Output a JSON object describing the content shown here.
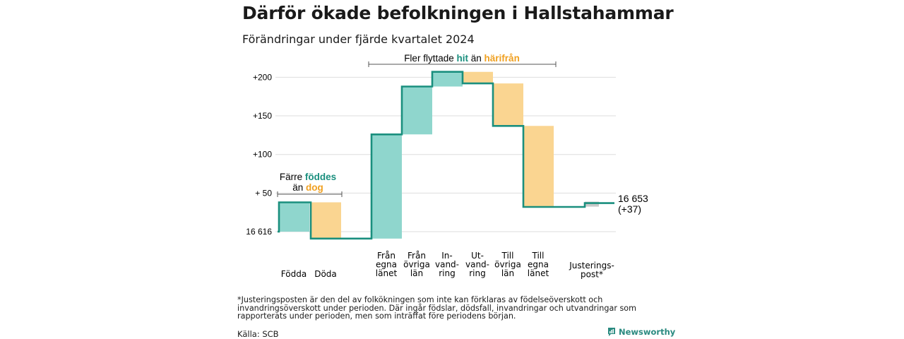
{
  "header": {
    "title": "Därför ökade befolkningen i Hallstahammar",
    "subtitle": "Förändringar under fjärde kvartalet 2024"
  },
  "annotations": {
    "migration_prefix": "Fler flyttade",
    "migration_hit": "hit",
    "migration_mid": "än",
    "migration_harifran": "härifrån",
    "births_line1_prefix": "Färre",
    "births_line1_word": "föddes",
    "births_line2_prefix": "än",
    "births_line2_word": "dog"
  },
  "end_label": {
    "value": "16 653",
    "change": "(+37)"
  },
  "colors": {
    "increase": "#8fd6cd",
    "decrease": "#fad591",
    "adjustment": "#c8c8c8",
    "line": "#1a8f7e",
    "teal_text": "#1a8f7e",
    "orange_text": "#f0a020",
    "grid": "#dddddd"
  },
  "chart_data": {
    "type": "waterfall",
    "title": "Därför ökade befolkningen i Hallstahammar",
    "subtitle": "Förändringar under fjärde kvartalet 2024",
    "baseline": 16616,
    "baseline_label": "16 616",
    "y_ticks": [
      "+200",
      "+150",
      "+100",
      "+ 50"
    ],
    "ylim": [
      -10,
      210
    ],
    "grid": true,
    "categories": [
      {
        "lines": [
          "Födda"
        ],
        "delta": 38,
        "kind": "increase"
      },
      {
        "lines": [
          "Döda"
        ],
        "delta": -47,
        "kind": "decrease"
      },
      {
        "lines": [
          "Från",
          "egna",
          "länet"
        ],
        "delta": 135,
        "kind": "increase"
      },
      {
        "lines": [
          "Från",
          "övriga",
          "län"
        ],
        "delta": 62,
        "kind": "increase"
      },
      {
        "lines": [
          "In-",
          "vand-",
          "ring"
        ],
        "delta": 19,
        "kind": "increase"
      },
      {
        "lines": [
          "Ut-",
          "vand-",
          "ring"
        ],
        "delta": -15,
        "kind": "decrease"
      },
      {
        "lines": [
          "Till",
          "övriga",
          "län"
        ],
        "delta": -55,
        "kind": "decrease"
      },
      {
        "lines": [
          "Till",
          "egna",
          "länet"
        ],
        "delta": -105,
        "kind": "decrease"
      },
      {
        "lines": [
          "Justerings-",
          "post*"
        ],
        "delta": 5,
        "kind": "adjustment"
      }
    ],
    "end_value": 16653,
    "end_change": 37
  },
  "footer": {
    "note": "*Justeringsposten är den del av folkökningen som inte kan förklaras av födelseöverskott och invandringsöverskott under perioden. Där ingår födslar, dödsfall, invandringar och utvandringar som rapporterats under perioden, men som inträffat före periodens början.",
    "source": "Källa: SCB",
    "brand": "Newsworthy",
    "brand_icon": "newsworthy-logo-icon"
  }
}
